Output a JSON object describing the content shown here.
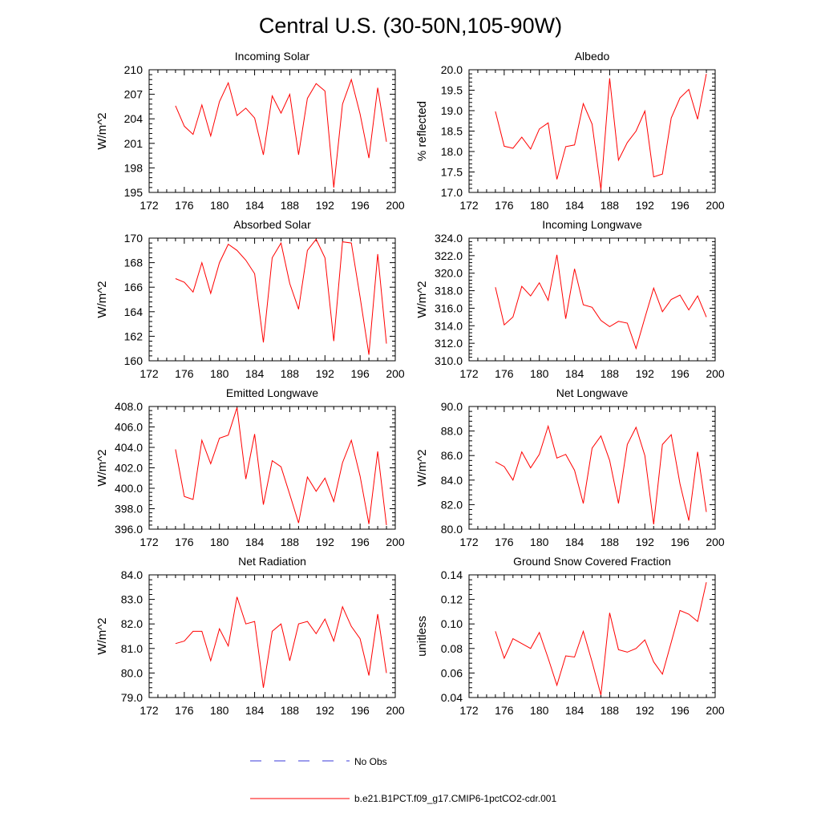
{
  "figure": {
    "title": "Central U.S. (30-50N,105-90W)"
  },
  "legend": {
    "items": [
      {
        "label": "No Obs",
        "color": "#3a3ad8",
        "style": "dashed"
      },
      {
        "label": "b.e21.B1PCT.f09_g17.CMIP6-1pctCO2-cdr.001",
        "color": "#ff0000",
        "style": "solid"
      }
    ]
  },
  "chart_data": [
    {
      "type": "line",
      "title": "Incoming Solar",
      "ylabel": "W/m^2",
      "xlim": [
        172,
        200
      ],
      "ylim": [
        195,
        210
      ],
      "xticks": [
        "172",
        "176",
        "180",
        "184",
        "188",
        "192",
        "196",
        "200"
      ],
      "yticks": [
        "195",
        "198",
        "201",
        "204",
        "207",
        "210"
      ],
      "series": [
        {
          "color": "#ff0000",
          "x": [
            175,
            176,
            177,
            178,
            179,
            180,
            181,
            182,
            183,
            184,
            185,
            186,
            187,
            188,
            189,
            190,
            191,
            192,
            193,
            194,
            195,
            196,
            197,
            198,
            199
          ],
          "y": [
            205.6,
            203.1,
            202.1,
            205.7,
            201.9,
            206.1,
            208.4,
            204.4,
            205.3,
            204.1,
            199.6,
            206.8,
            204.7,
            207.0,
            199.6,
            206.5,
            208.3,
            207.4,
            195.6,
            205.8,
            208.8,
            204.6,
            199.2,
            207.8,
            201.2
          ]
        }
      ]
    },
    {
      "type": "line",
      "title": "Albedo",
      "ylabel": "% reflected",
      "xlim": [
        172,
        200
      ],
      "ylim": [
        17.0,
        20.0
      ],
      "xticks": [
        "172",
        "176",
        "180",
        "184",
        "188",
        "192",
        "196",
        "200"
      ],
      "yticks": [
        "17.0",
        "17.5",
        "18.0",
        "18.5",
        "19.0",
        "19.5",
        "20.0"
      ],
      "series": [
        {
          "color": "#ff0000",
          "x": [
            175,
            176,
            177,
            178,
            179,
            180,
            181,
            182,
            183,
            184,
            185,
            186,
            187,
            188,
            189,
            190,
            191,
            192,
            193,
            194,
            195,
            196,
            197,
            198,
            199
          ],
          "y": [
            18.98,
            18.13,
            18.08,
            18.35,
            18.06,
            18.55,
            18.7,
            17.32,
            18.12,
            18.16,
            19.17,
            18.67,
            17.07,
            19.79,
            17.79,
            18.22,
            18.5,
            18.99,
            17.38,
            17.45,
            18.82,
            19.31,
            19.52,
            18.79,
            19.9
          ]
        }
      ]
    },
    {
      "type": "line",
      "title": "Absorbed Solar",
      "ylabel": "W/m^2",
      "xlim": [
        172,
        200
      ],
      "ylim": [
        160,
        170
      ],
      "xticks": [
        "172",
        "176",
        "180",
        "184",
        "188",
        "192",
        "196",
        "200"
      ],
      "yticks": [
        "160",
        "162",
        "164",
        "166",
        "168",
        "170"
      ],
      "series": [
        {
          "color": "#ff0000",
          "x": [
            175,
            176,
            177,
            178,
            179,
            180,
            181,
            182,
            183,
            184,
            185,
            186,
            187,
            188,
            189,
            190,
            191,
            192,
            193,
            194,
            195,
            196,
            197,
            198,
            199
          ],
          "y": [
            166.7,
            166.4,
            165.6,
            168.0,
            165.5,
            168.0,
            169.5,
            169.0,
            168.2,
            167.1,
            161.5,
            168.4,
            169.6,
            166.3,
            164.2,
            169.0,
            169.9,
            168.4,
            161.6,
            169.7,
            169.6,
            165.2,
            160.5,
            168.7,
            161.4
          ]
        }
      ]
    },
    {
      "type": "line",
      "title": "Incoming Longwave",
      "ylabel": "W/m^2",
      "xlim": [
        172,
        200
      ],
      "ylim": [
        310.0,
        324.0
      ],
      "xticks": [
        "172",
        "176",
        "180",
        "184",
        "188",
        "192",
        "196",
        "200"
      ],
      "yticks": [
        "310.0",
        "312.0",
        "314.0",
        "316.0",
        "318.0",
        "320.0",
        "322.0",
        "324.0"
      ],
      "series": [
        {
          "color": "#ff0000",
          "x": [
            175,
            176,
            177,
            178,
            179,
            180,
            181,
            182,
            183,
            184,
            185,
            186,
            187,
            188,
            189,
            190,
            191,
            192,
            193,
            194,
            195,
            196,
            197,
            198,
            199
          ],
          "y": [
            318.4,
            314.1,
            315.0,
            318.5,
            317.4,
            318.9,
            316.9,
            322.1,
            314.8,
            320.5,
            316.4,
            316.1,
            314.6,
            313.9,
            314.5,
            314.3,
            311.4,
            314.9,
            318.3,
            315.6,
            317.0,
            317.5,
            315.8,
            317.4,
            315.0
          ]
        }
      ]
    },
    {
      "type": "line",
      "title": "Emitted Longwave",
      "ylabel": "W/m^2",
      "xlim": [
        172,
        200
      ],
      "ylim": [
        396.0,
        408.0
      ],
      "xticks": [
        "172",
        "176",
        "180",
        "184",
        "188",
        "192",
        "196",
        "200"
      ],
      "yticks": [
        "396.0",
        "398.0",
        "400.0",
        "402.0",
        "404.0",
        "406.0",
        "408.0"
      ],
      "series": [
        {
          "color": "#ff0000",
          "x": [
            175,
            176,
            177,
            178,
            179,
            180,
            181,
            182,
            183,
            184,
            185,
            186,
            187,
            188,
            189,
            190,
            191,
            192,
            193,
            194,
            195,
            196,
            197,
            198,
            199
          ],
          "y": [
            403.8,
            399.2,
            398.9,
            404.7,
            402.4,
            404.9,
            405.2,
            407.9,
            400.9,
            405.3,
            398.4,
            402.7,
            402.1,
            399.4,
            396.6,
            401.1,
            399.7,
            401.0,
            398.7,
            402.5,
            404.7,
            401.2,
            396.5,
            403.6,
            396.4
          ]
        }
      ]
    },
    {
      "type": "line",
      "title": "Net Longwave",
      "ylabel": "W/m^2",
      "xlim": [
        172,
        200
      ],
      "ylim": [
        80.0,
        90.0
      ],
      "xticks": [
        "172",
        "176",
        "180",
        "184",
        "188",
        "192",
        "196",
        "200"
      ],
      "yticks": [
        "80.0",
        "82.0",
        "84.0",
        "86.0",
        "88.0",
        "90.0"
      ],
      "series": [
        {
          "color": "#ff0000",
          "x": [
            175,
            176,
            177,
            178,
            179,
            180,
            181,
            182,
            183,
            184,
            185,
            186,
            187,
            188,
            189,
            190,
            191,
            192,
            193,
            194,
            195,
            196,
            197,
            198,
            199
          ],
          "y": [
            85.5,
            85.1,
            84.0,
            86.3,
            85.0,
            86.1,
            88.4,
            85.8,
            86.1,
            84.8,
            82.1,
            86.6,
            87.6,
            85.6,
            82.1,
            86.9,
            88.3,
            86.0,
            80.4,
            86.9,
            87.7,
            83.7,
            80.7,
            86.3,
            81.4
          ]
        }
      ]
    },
    {
      "type": "line",
      "title": "Net Radiation",
      "ylabel": "W/m^2",
      "xlim": [
        172,
        200
      ],
      "ylim": [
        79.0,
        84.0
      ],
      "xticks": [
        "172",
        "176",
        "180",
        "184",
        "188",
        "192",
        "196",
        "200"
      ],
      "yticks": [
        "79.0",
        "80.0",
        "81.0",
        "82.0",
        "83.0",
        "84.0"
      ],
      "series": [
        {
          "color": "#ff0000",
          "x": [
            175,
            176,
            177,
            178,
            179,
            180,
            181,
            182,
            183,
            184,
            185,
            186,
            187,
            188,
            189,
            190,
            191,
            192,
            193,
            194,
            195,
            196,
            197,
            198,
            199
          ],
          "y": [
            81.2,
            81.3,
            81.7,
            81.7,
            80.5,
            81.8,
            81.1,
            83.1,
            82.0,
            82.1,
            79.4,
            81.7,
            82.0,
            80.5,
            82.0,
            82.1,
            81.6,
            82.2,
            81.3,
            82.7,
            81.9,
            81.4,
            79.9,
            82.4,
            80.0
          ]
        }
      ]
    },
    {
      "type": "line",
      "title": "Ground Snow Covered Fraction",
      "ylabel": "unitless",
      "xlim": [
        172,
        200
      ],
      "ylim": [
        0.04,
        0.14
      ],
      "xticks": [
        "172",
        "176",
        "180",
        "184",
        "188",
        "192",
        "196",
        "200"
      ],
      "yticks": [
        "0.04",
        "0.06",
        "0.08",
        "0.10",
        "0.12",
        "0.14"
      ],
      "series": [
        {
          "color": "#ff0000",
          "x": [
            175,
            176,
            177,
            178,
            179,
            180,
            181,
            182,
            183,
            184,
            185,
            186,
            187,
            188,
            189,
            190,
            191,
            192,
            193,
            194,
            195,
            196,
            197,
            198,
            199
          ],
          "y": [
            0.094,
            0.072,
            0.088,
            0.084,
            0.08,
            0.093,
            0.072,
            0.05,
            0.074,
            0.073,
            0.094,
            0.069,
            0.042,
            0.109,
            0.079,
            0.077,
            0.08,
            0.087,
            0.069,
            0.059,
            0.085,
            0.111,
            0.108,
            0.102,
            0.134
          ]
        }
      ]
    }
  ]
}
